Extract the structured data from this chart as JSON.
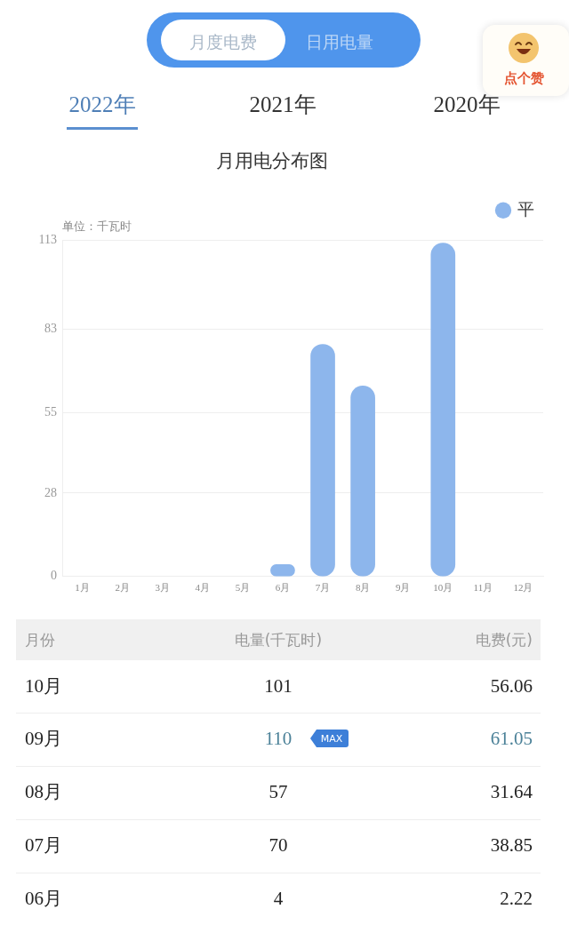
{
  "chart_data": [
    {
      "type": "other",
      "annotations": [
        "月度电费",
        "日用电量",
        "2022年",
        "2021年",
        "2020年",
        "点个赞"
      ]
    },
    {
      "type": "bar",
      "title": "月用电分布图",
      "ylabel": "单位：千瓦时",
      "categories": [
        "1月",
        "2月",
        "3月",
        "4月",
        "5月",
        "6月",
        "7月",
        "8月",
        "9月",
        "10月",
        "11月",
        "12月"
      ],
      "series": [
        {
          "name": "平",
          "color": "#8db6ec",
          "values": [
            null,
            null,
            null,
            null,
            null,
            4,
            78,
            64,
            null,
            112,
            null,
            null
          ]
        }
      ],
      "ylim": [
        0,
        113
      ],
      "yticks": [
        0,
        28,
        55,
        83,
        113
      ],
      "grid": "y",
      "legend": "top right",
      "annotations": [
        "月份",
        "电量(千瓦时)",
        "电费(元)",
        "10月",
        "101",
        "56.06",
        "09月",
        "110",
        "MAX",
        "61.05",
        "08月",
        "57",
        "31.64",
        "07月",
        "70",
        "38.85",
        "06月",
        "4",
        "2.22"
      ]
    }
  ]
}
